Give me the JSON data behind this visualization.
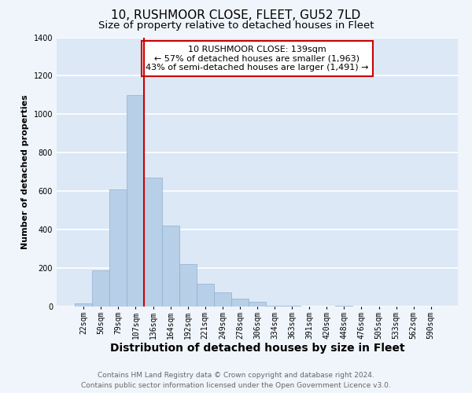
{
  "title": "10, RUSHMOOR CLOSE, FLEET, GU52 7LD",
  "subtitle": "Size of property relative to detached houses in Fleet",
  "xlabel": "Distribution of detached houses by size in Fleet",
  "ylabel": "Number of detached properties",
  "bin_labels": [
    "22sqm",
    "50sqm",
    "79sqm",
    "107sqm",
    "136sqm",
    "164sqm",
    "192sqm",
    "221sqm",
    "249sqm",
    "278sqm",
    "306sqm",
    "334sqm",
    "363sqm",
    "391sqm",
    "420sqm",
    "448sqm",
    "476sqm",
    "505sqm",
    "533sqm",
    "562sqm",
    "590sqm"
  ],
  "bar_heights": [
    15,
    190,
    610,
    1100,
    670,
    420,
    220,
    120,
    75,
    40,
    25,
    5,
    3,
    0,
    0,
    5,
    0,
    0,
    0,
    0,
    0
  ],
  "bar_color": "#b8cfe8",
  "bar_edge_color": "#90afd0",
  "property_line_index": 4,
  "property_line_color": "#cc0000",
  "annotation_line1": "10 RUSHMOOR CLOSE: 139sqm",
  "annotation_line2": "← 57% of detached houses are smaller (1,963)",
  "annotation_line3": "43% of semi-detached houses are larger (1,491) →",
  "annotation_box_facecolor": "white",
  "annotation_box_edgecolor": "#cc0000",
  "ylim": [
    0,
    1400
  ],
  "yticks": [
    0,
    200,
    400,
    600,
    800,
    1000,
    1200,
    1400
  ],
  "footer_line1": "Contains HM Land Registry data © Crown copyright and database right 2024.",
  "footer_line2": "Contains public sector information licensed under the Open Government Licence v3.0.",
  "bg_color": "#f0f5fb",
  "plot_bg_color": "#dce8f5",
  "grid_color": "white",
  "title_fontsize": 11,
  "subtitle_fontsize": 9.5,
  "xlabel_fontsize": 10,
  "ylabel_fontsize": 8,
  "tick_fontsize": 7,
  "footer_fontsize": 6.5,
  "annotation_fontsize": 8
}
